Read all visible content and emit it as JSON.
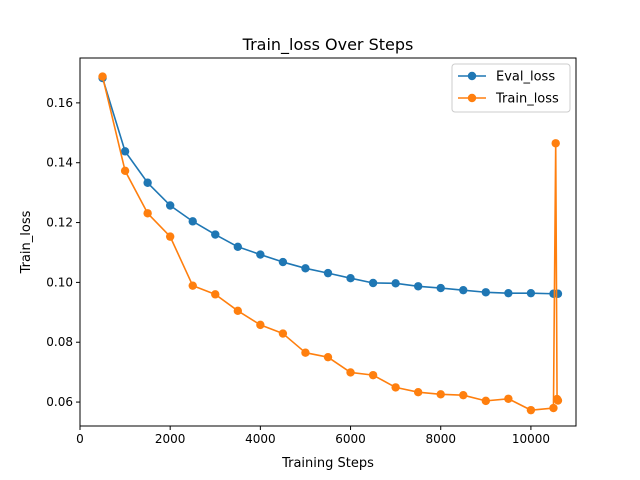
{
  "chart_data": {
    "type": "line",
    "title": "Train_loss Over Steps",
    "xlabel": "Training Steps",
    "ylabel": "Train_loss",
    "xlim": [
      0,
      11000
    ],
    "ylim": [
      0.052,
      0.175
    ],
    "xticks": [
      0,
      2000,
      4000,
      6000,
      8000,
      10000
    ],
    "yticks": [
      0.06,
      0.08,
      0.1,
      0.12,
      0.14,
      0.16
    ],
    "grid": false,
    "legend_position": "top-right",
    "series": [
      {
        "name": "Eval_loss",
        "color": "#1f77b4",
        "marker": "circle",
        "x": [
          500,
          1000,
          1500,
          2000,
          2500,
          3000,
          3500,
          4000,
          4500,
          5000,
          5500,
          6000,
          6500,
          7000,
          7500,
          8000,
          8500,
          9000,
          9500,
          10000,
          10500,
          10600
        ],
        "y": [
          0.1683,
          0.1438,
          0.1333,
          0.1257,
          0.1204,
          0.116,
          0.1119,
          0.1093,
          0.1068,
          0.1047,
          0.1031,
          0.1014,
          0.0998,
          0.0997,
          0.0987,
          0.0981,
          0.0974,
          0.0967,
          0.0964,
          0.0964,
          0.0962,
          0.0962
        ]
      },
      {
        "name": "Train_loss",
        "color": "#ff7f0e",
        "marker": "circle",
        "x": [
          500,
          1000,
          1500,
          2000,
          2500,
          3000,
          3500,
          4000,
          4500,
          5000,
          5500,
          6000,
          6500,
          7000,
          7500,
          8000,
          8500,
          9000,
          9500,
          10000,
          10500,
          10550,
          10580,
          10600
        ],
        "y": [
          0.1688,
          0.1373,
          0.1231,
          0.1153,
          0.0989,
          0.096,
          0.0905,
          0.0858,
          0.0829,
          0.0765,
          0.075,
          0.0699,
          0.069,
          0.0649,
          0.0633,
          0.0626,
          0.0623,
          0.0604,
          0.0611,
          0.0573,
          0.058,
          0.1465,
          0.061,
          0.0605
        ]
      }
    ]
  }
}
